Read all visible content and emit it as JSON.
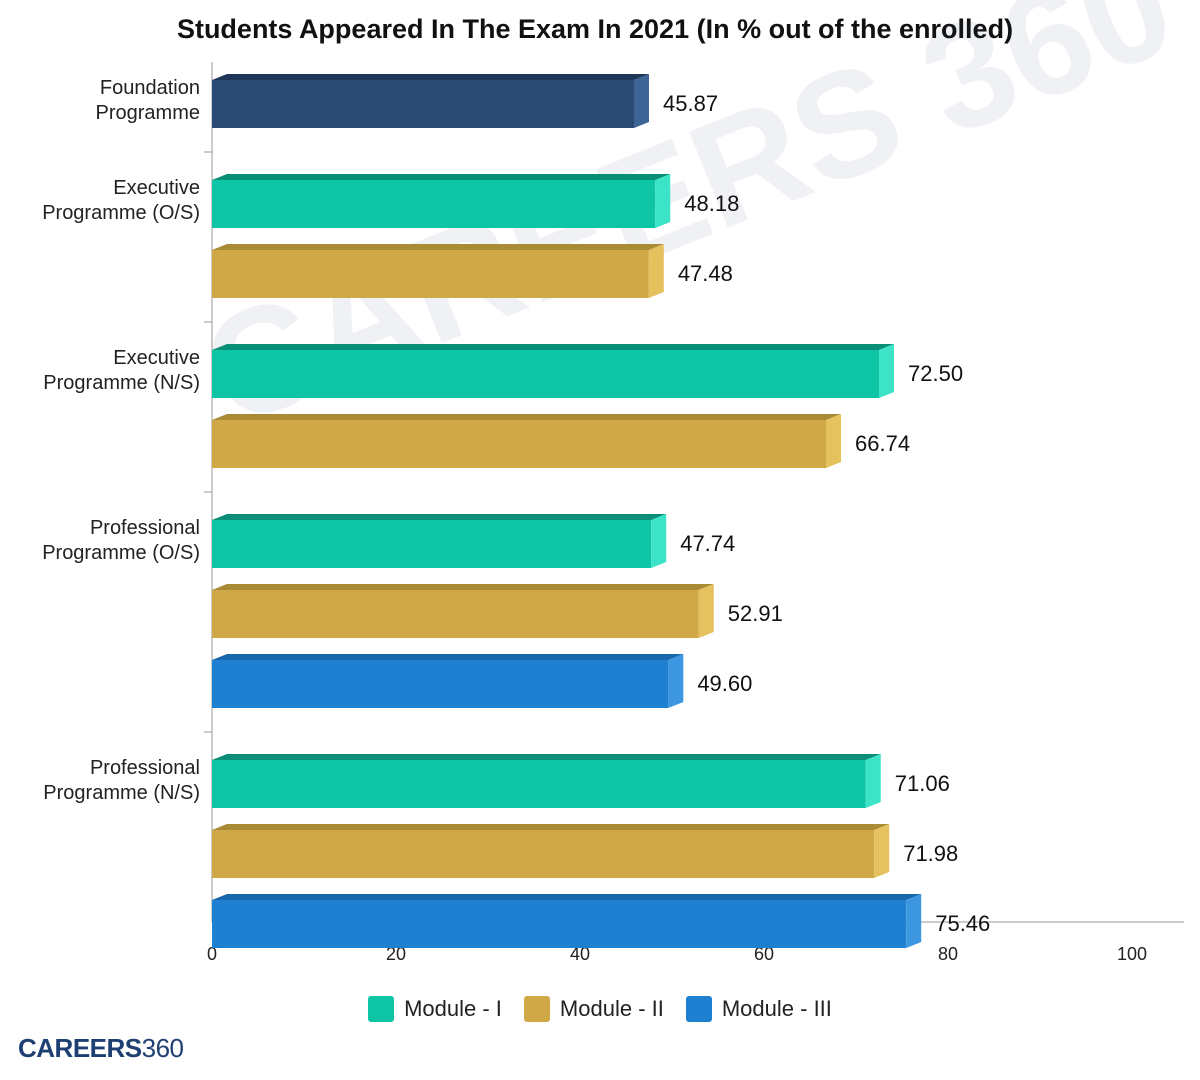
{
  "chart_data": {
    "type": "bar",
    "orientation": "horizontal",
    "title": "Students Appeared In The Exam In 2021 (In % out of the enrolled)",
    "xlim": [
      0,
      100
    ],
    "xticks": [
      "0",
      "20",
      "40",
      "60",
      "80",
      "100"
    ],
    "grid": false,
    "legend_position": "bottom",
    "groups": [
      {
        "label": "Foundation Programme",
        "label_lines": [
          "Foundation",
          "Programme"
        ],
        "bars": [
          {
            "series": "Foundation",
            "value": 45.87,
            "label": "45.87"
          }
        ]
      },
      {
        "label": "Executive Programme (O/S)",
        "label_lines": [
          "Executive",
          "Programme (O/S)"
        ],
        "bars": [
          {
            "series": "Module - I",
            "value": 48.18,
            "label": "48.18"
          },
          {
            "series": "Module - II",
            "value": 47.48,
            "label": "47.48"
          }
        ]
      },
      {
        "label": "Executive Programme (N/S)",
        "label_lines": [
          "Executive",
          "Programme (N/S)"
        ],
        "bars": [
          {
            "series": "Module - I",
            "value": 72.5,
            "label": "72.50"
          },
          {
            "series": "Module - II",
            "value": 66.74,
            "label": "66.74"
          }
        ]
      },
      {
        "label": "Professional Programme (O/S)",
        "label_lines": [
          "Professional",
          "Programme (O/S)"
        ],
        "bars": [
          {
            "series": "Module - I",
            "value": 47.74,
            "label": "47.74"
          },
          {
            "series": "Module - II",
            "value": 52.91,
            "label": "52.91"
          },
          {
            "series": "Module - III",
            "value": 49.6,
            "label": "49.60"
          }
        ]
      },
      {
        "label": "Professional Programme (N/S)",
        "label_lines": [
          "Professional",
          "Programme (N/S)"
        ],
        "bars": [
          {
            "series": "Module - I",
            "value": 71.06,
            "label": "71.06"
          },
          {
            "series": "Module - II",
            "value": 71.98,
            "label": "71.98"
          },
          {
            "series": "Module - III",
            "value": 75.46,
            "label": "75.46"
          }
        ]
      }
    ],
    "colors": {
      "Foundation": {
        "front": "#2b4a74",
        "top": "#1e3658",
        "side": "#3d6494"
      },
      "Module - I": {
        "front": "#0ec6a5",
        "top": "#0a8f77",
        "side": "#3de3c6"
      },
      "Module - II": {
        "front": "#d0a847",
        "top": "#a98a35",
        "side": "#e6c25e"
      },
      "Module - III": {
        "front": "#1f7fd0",
        "top": "#1866ab",
        "side": "#3d96e0"
      }
    },
    "legend": [
      {
        "name": "Module - I",
        "color": "#0ec6a5"
      },
      {
        "name": "Module - II",
        "color": "#d0a847"
      },
      {
        "name": "Module - III",
        "color": "#1f7fd0"
      }
    ]
  },
  "brand": {
    "name": "CAREERS",
    "number": "360"
  },
  "watermark": "CAREERS 360"
}
